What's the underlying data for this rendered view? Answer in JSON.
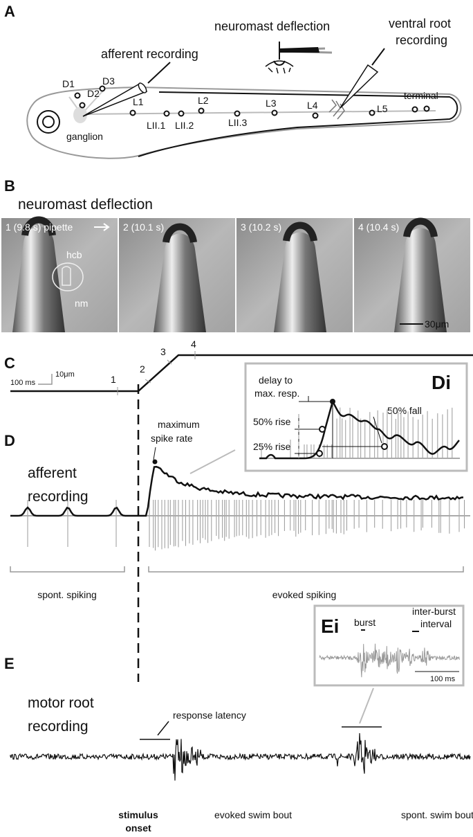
{
  "panel_a": {
    "label": "A",
    "neuromast_deflection": "neuromast deflection",
    "ventral_root": [
      "ventral root",
      "recording"
    ],
    "afferent_recording": "afferent recording",
    "D1": "D1",
    "D2": "D2",
    "D3": "D3",
    "L1": "L1",
    "L2": "L2",
    "L3": "L3",
    "L4": "L4",
    "L5": "L5",
    "LII1": "LII.1",
    "LII2": "LII.2",
    "LII3": "LII.3",
    "terminal": "terminal",
    "ganglion": "ganglion"
  },
  "panel_b": {
    "label": "B",
    "title": "neuromast deflection",
    "frames": [
      "1 (9.8 s) pipette",
      "2 (10.1 s)",
      "3 (10.2 s)",
      "4 (10.4 s)"
    ],
    "hcb": "hcb",
    "nm": "nm",
    "scale": "30μm"
  },
  "panel_c": {
    "label": "C",
    "time_scale": "100 ms",
    "distance_scale": "10μm",
    "steps": [
      "1",
      "2",
      "3",
      "4"
    ]
  },
  "panel_di": {
    "label": "Di",
    "delay": [
      "delay to",
      "max. resp."
    ],
    "rise50": "50% rise",
    "rise25": "25% rise",
    "fall50": "50% fall"
  },
  "panel_d": {
    "label": "D",
    "title": [
      "afferent",
      "recording"
    ],
    "max_rate": [
      "maximum",
      "spike rate"
    ],
    "spont": "spont. spiking",
    "evoked": "evoked spiking"
  },
  "panel_ei": {
    "label": "Ei",
    "burst": "burst",
    "interval": [
      "inter-burst",
      "interval"
    ],
    "scale": "100 ms"
  },
  "panel_e": {
    "label": "E",
    "title": [
      "motor root",
      "recording"
    ],
    "latency": "response latency",
    "onset": [
      "stimulus",
      "onset"
    ],
    "evoked_bout": "evoked swim bout",
    "spont_bout": "spont. swim bout"
  }
}
